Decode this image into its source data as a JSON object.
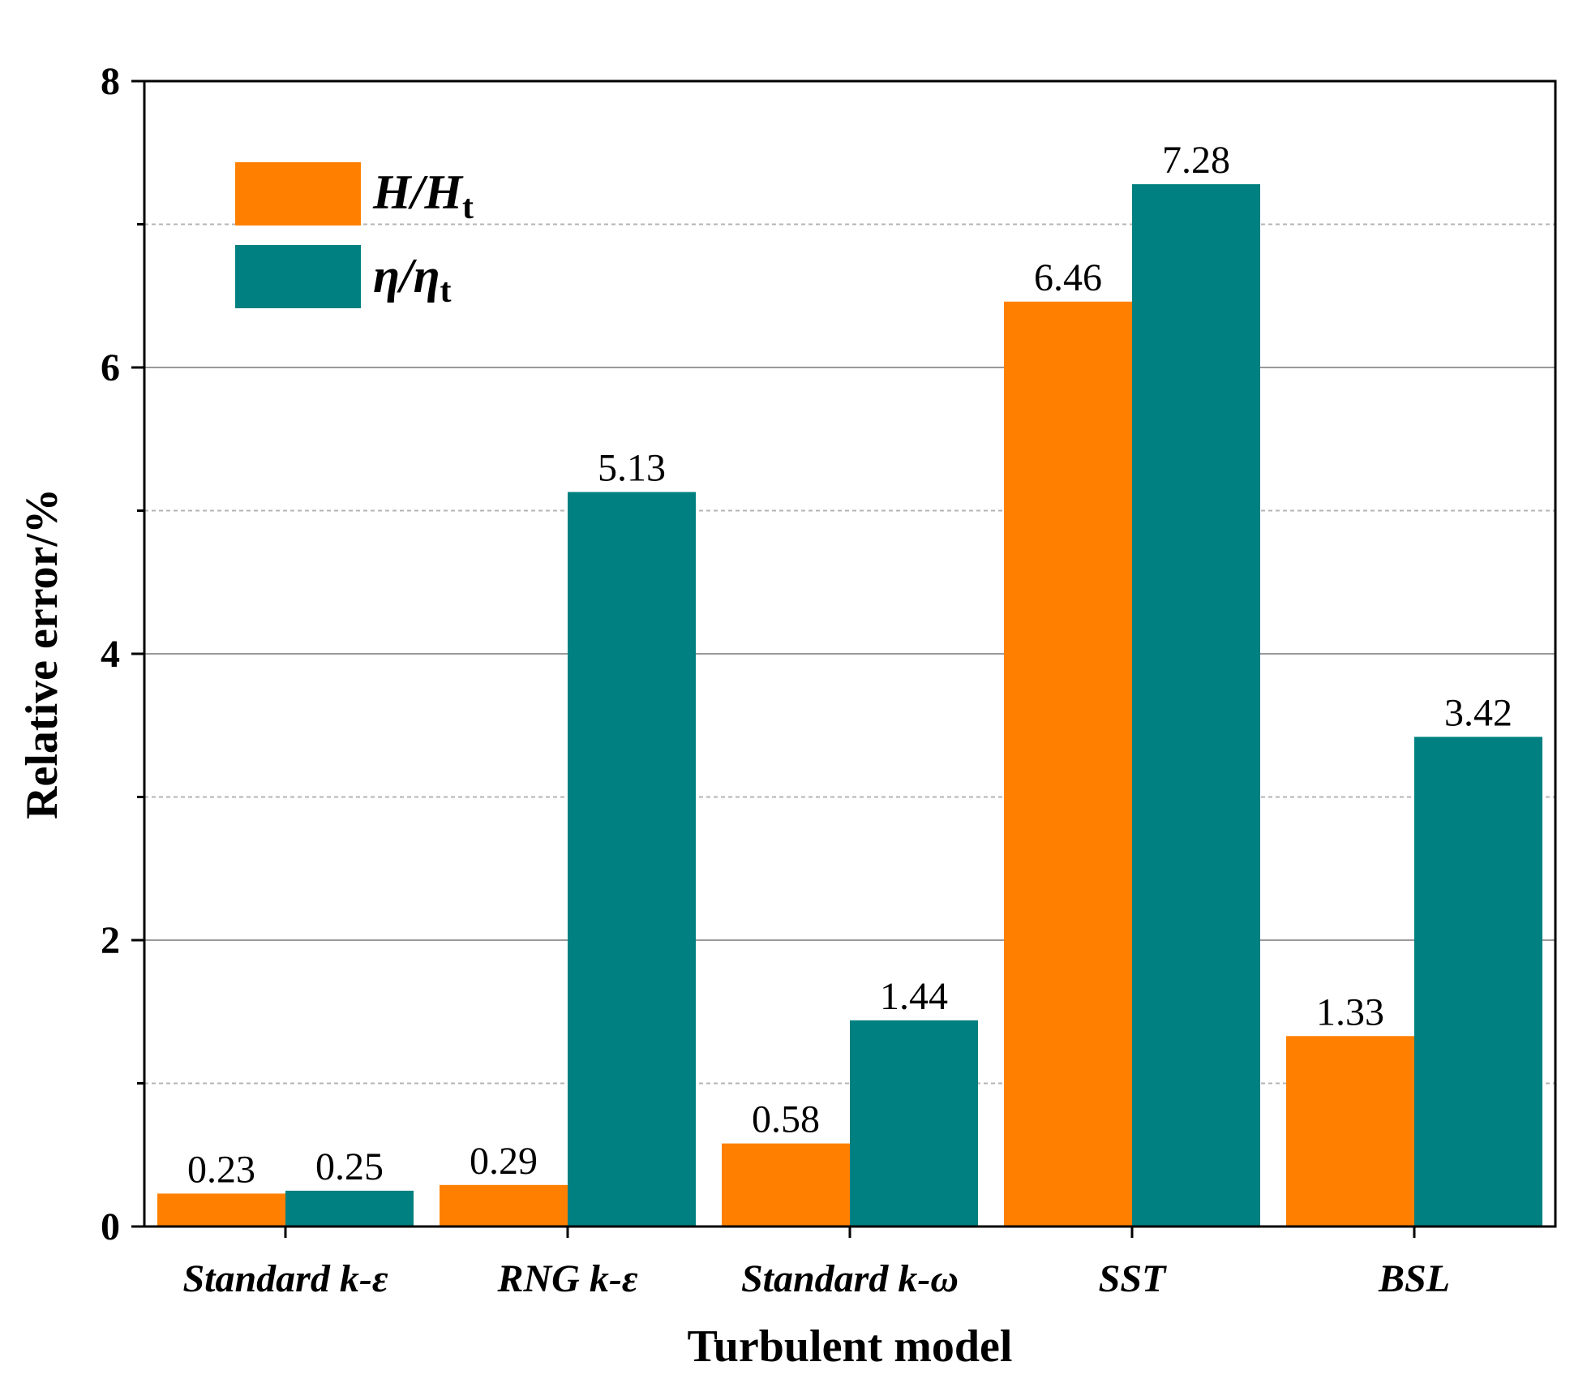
{
  "chart_data": {
    "type": "bar",
    "title": "",
    "xlabel": "Turbulent model",
    "ylabel": "Relative error/%",
    "ylim": [
      0,
      8
    ],
    "yticks": [
      0,
      2,
      4,
      6,
      8
    ],
    "grid": true,
    "legend_position": "top-left",
    "categories": [
      "Standard k-ε",
      "RNG k-ε",
      "Standard k-ω",
      "SST",
      "BSL"
    ],
    "series": [
      {
        "name": "H/Ht",
        "legend_main": "H/H",
        "legend_sub": "t",
        "color": "#ff8000",
        "values": [
          0.23,
          0.29,
          0.58,
          6.46,
          1.33
        ],
        "labels": [
          "0.23",
          "0.29",
          "0.58",
          "6.46",
          "1.33"
        ]
      },
      {
        "name": "η/ηt",
        "legend_main": "η/η",
        "legend_sub": "t",
        "color": "#008080",
        "values": [
          0.25,
          5.13,
          1.44,
          7.28,
          3.42
        ],
        "labels": [
          "0.25",
          "5.13",
          "1.44",
          "7.28",
          "3.42"
        ]
      }
    ]
  }
}
